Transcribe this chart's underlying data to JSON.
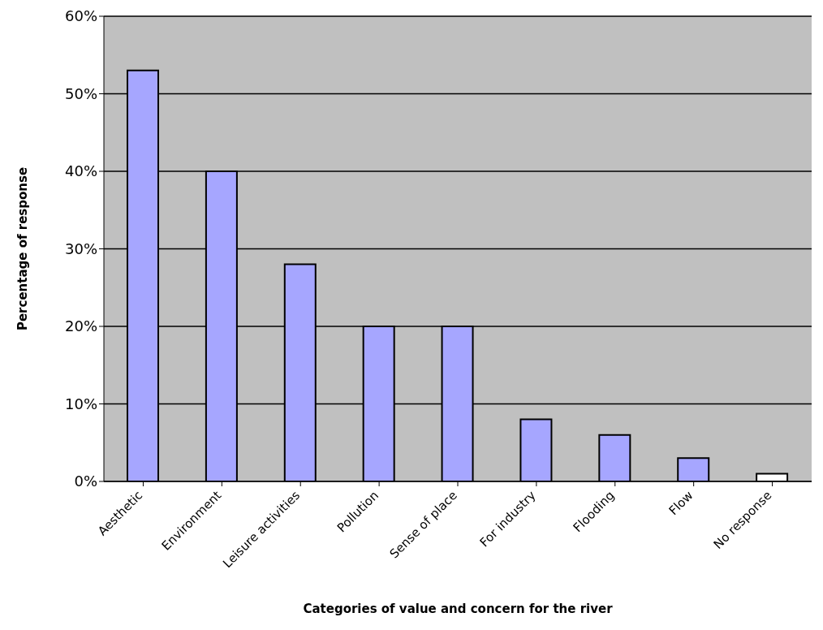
{
  "chart_data": {
    "type": "bar",
    "xlabel": "Categories of value and concern for the river",
    "ylabel": "Percentage of response",
    "categories": [
      "Aesthetic",
      "Environment",
      "Leisure activities",
      "Pollution",
      "Sense of place",
      "For industry",
      "Flooding",
      "Flow",
      "No response"
    ],
    "values": [
      53,
      40,
      28,
      20,
      20,
      8,
      6,
      3,
      1
    ],
    "colors": [
      "#a6a6ff",
      "#a6a6ff",
      "#a6a6ff",
      "#a6a6ff",
      "#a6a6ff",
      "#a6a6ff",
      "#a6a6ff",
      "#a6a6ff",
      "#ffffff"
    ],
    "ylim": [
      0,
      60
    ],
    "yticks": [
      {
        "value": 0,
        "label": "0%"
      },
      {
        "value": 10,
        "label": "10%"
      },
      {
        "value": 20,
        "label": "20%"
      },
      {
        "value": 30,
        "label": "30%"
      },
      {
        "value": 40,
        "label": "40%"
      },
      {
        "value": 50,
        "label": "50%"
      },
      {
        "value": 60,
        "label": "60%"
      }
    ],
    "grid": "y"
  }
}
